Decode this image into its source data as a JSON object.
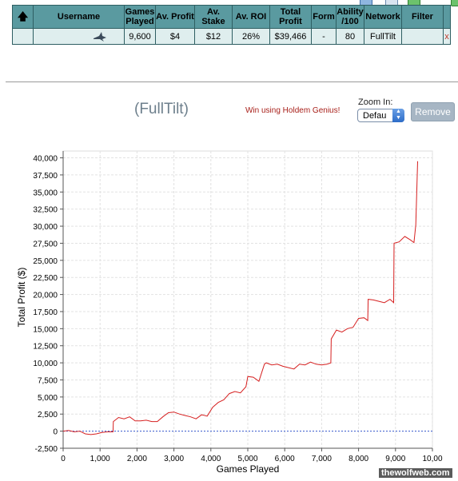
{
  "table": {
    "headers": {
      "username": "Username",
      "games_played": "Games Played",
      "av_profit": "Av. Profit",
      "av_stake": "Av. Stake",
      "av_roi": "Av. ROI",
      "total_profit": "Total Profit",
      "form": "Form",
      "ability": "Ability /100",
      "network": "Network",
      "filter": "Filter"
    },
    "row": {
      "username": "",
      "games_played": "9,600",
      "av_profit": "$4",
      "av_stake": "$12",
      "av_roi": "26%",
      "total_profit": "$39,466",
      "form": "-",
      "ability": "80",
      "network": "FullTilt",
      "filter": "",
      "remove": "x"
    }
  },
  "header": {
    "site_name": "(FullTilt)",
    "win_text": "Win using Holdem Genius!",
    "zoom_label": "Zoom In:",
    "zoom_value": "Defau",
    "remove_label": "Remove"
  },
  "watermark": "thewolfweb.com",
  "colors": {
    "table_header": "#5a9aa0",
    "table_row": "#dfeeee",
    "line": "#d62020",
    "win_text": "#a8201a"
  },
  "chart_data": {
    "type": "line",
    "xlabel": "Games Played",
    "ylabel": "Total Profit ($)",
    "xlim": [
      0,
      10000
    ],
    "ylim": [
      -2500,
      41000
    ],
    "xticks": [
      "0",
      "1,000",
      "2,000",
      "3,000",
      "4,000",
      "5,000",
      "6,000",
      "7,000",
      "8,000",
      "9,000",
      "10,00"
    ],
    "yticks": [
      "-2,500",
      "0",
      "2,500",
      "5,000",
      "7,500",
      "10,000",
      "12,500",
      "15,000",
      "17,500",
      "20,000",
      "22,500",
      "25,000",
      "27,500",
      "30,000",
      "32,500",
      "35,000",
      "37,500",
      "40,000"
    ],
    "grid": true,
    "series": [
      {
        "x": [
          0,
          150,
          300,
          450,
          600,
          750,
          900,
          1050,
          1200,
          1350,
          1360,
          1500,
          1650,
          1800,
          1950,
          2100,
          2250,
          2400,
          2550,
          2700,
          2850,
          3000,
          3150,
          3300,
          3450,
          3600,
          3750,
          3900,
          4050,
          4200,
          4350,
          4500,
          4650,
          4800,
          4950,
          5000,
          5150,
          5300,
          5450,
          5500,
          5650,
          5800,
          5950,
          6100,
          6250,
          6400,
          6550,
          6700,
          6850,
          7000,
          7150,
          7250,
          7260,
          7400,
          7550,
          7700,
          7850,
          8000,
          8150,
          8250,
          8260,
          8400,
          8550,
          8700,
          8850,
          8950,
          8960,
          9100,
          9250,
          9400,
          9500,
          9550,
          9600
        ],
        "y": [
          0,
          100,
          -100,
          0,
          -400,
          -500,
          -400,
          -200,
          -100,
          -100,
          1400,
          2000,
          1800,
          2100,
          1500,
          1500,
          1600,
          1400,
          1400,
          2100,
          2700,
          2800,
          2500,
          2300,
          2100,
          1800,
          2400,
          2200,
          3500,
          4200,
          4600,
          5500,
          5800,
          5600,
          6500,
          8000,
          7900,
          7300,
          9800,
          10000,
          9700,
          9800,
          9500,
          9300,
          9100,
          9800,
          9700,
          10100,
          9800,
          9700,
          9800,
          10000,
          13500,
          14800,
          14500,
          15000,
          15200,
          16500,
          16600,
          16200,
          19300,
          19200,
          19000,
          18800,
          19300,
          18800,
          27500,
          27700,
          28500,
          28000,
          27600,
          30200,
          39500
        ]
      }
    ]
  }
}
